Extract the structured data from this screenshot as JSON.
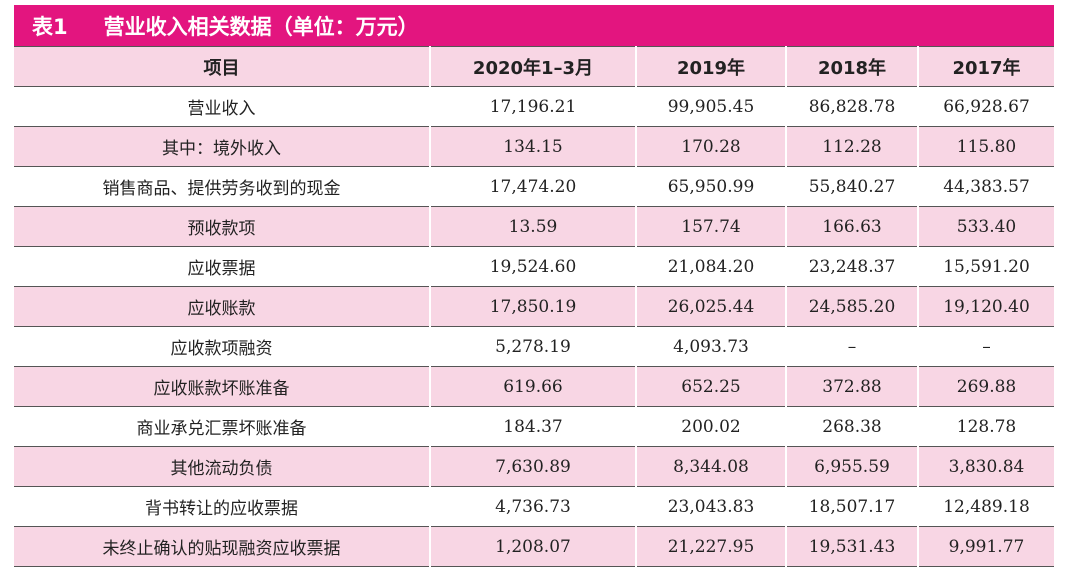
{
  "title_label": "表1",
  "title": "营业收入相关数据（单位：万元）",
  "table": {
    "header": [
      "项目",
      "2020年1–3月",
      "2019年",
      "2018年",
      "2017年"
    ],
    "rows": [
      [
        "营业收入",
        "17,196.21",
        "99,905.45",
        "86,828.78",
        "66,928.67"
      ],
      [
        "其中：境外收入",
        "134.15",
        "170.28",
        "112.28",
        "115.80"
      ],
      [
        "销售商品、提供劳务收到的现金",
        "17,474.20",
        "65,950.99",
        "55,840.27",
        "44,383.57"
      ],
      [
        "预收款项",
        "13.59",
        "157.74",
        "166.63",
        "533.40"
      ],
      [
        "应收票据",
        "19,524.60",
        "21,084.20",
        "23,248.37",
        "15,591.20"
      ],
      [
        "应收账款",
        "17,850.19",
        "26,025.44",
        "24,585.20",
        "19,120.40"
      ],
      [
        "应收款项融资",
        "5,278.19",
        "4,093.73",
        "–",
        "–"
      ],
      [
        "应收账款坏账准备",
        "619.66",
        "652.25",
        "372.88",
        "269.88"
      ],
      [
        "商业承兑汇票坏账准备",
        "184.37",
        "200.02",
        "268.38",
        "128.78"
      ],
      [
        "其他流动负债",
        "7,630.89",
        "8,344.08",
        "6,955.59",
        "3,830.84"
      ],
      [
        "背书转让的应收票据",
        "4,736.73",
        "23,043.83",
        "18,507.17",
        "12,489.18"
      ],
      [
        "未终止确认的贴现融资应收票据",
        "1,208.07",
        "21,227.95",
        "19,531.43",
        "9,991.77"
      ]
    ]
  }
}
